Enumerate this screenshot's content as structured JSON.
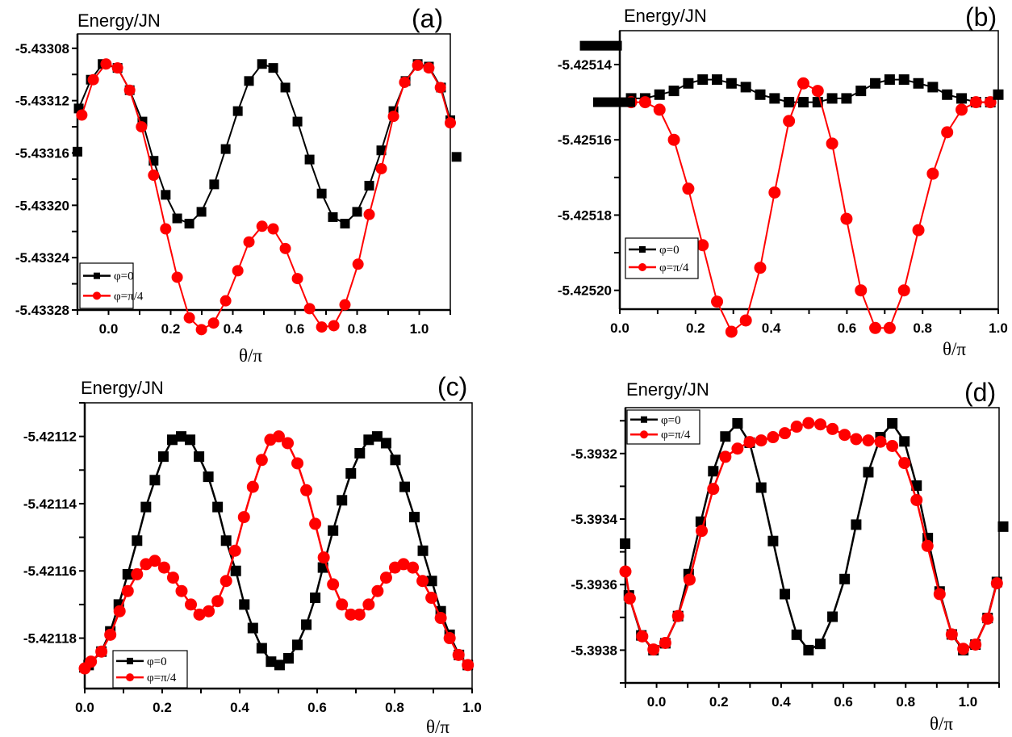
{
  "chart_data": [
    {
      "id": "a",
      "type": "line",
      "panel_label": "(a)",
      "title": "",
      "ylabel": "Energy/JN",
      "xlabel": "θ/π",
      "xlim": [
        -0.1,
        1.1
      ],
      "ylim": [
        -5.43328,
        -5.433069
      ],
      "xticks": [
        0.0,
        0.2,
        0.4,
        0.6,
        0.8,
        1.0
      ],
      "xtick_labels": [
        "0.0",
        "0.2",
        "0.4",
        "0.6",
        "0.8",
        "1.0"
      ],
      "yticks": [
        -5.43308,
        -5.43312,
        -5.43316,
        -5.4332,
        -5.43324,
        -5.43328
      ],
      "ytick_labels": [
        "-5.43308",
        "-5.43312",
        "-5.43316",
        "-5.43320",
        "-5.43324",
        "-5.43328"
      ],
      "legend": {
        "placement": "bottom-left",
        "entries": [
          "φ=0",
          "φ=π/4"
        ]
      },
      "grid": false,
      "series": [
        {
          "name": "φ=0",
          "color": "#000000",
          "marker": "square",
          "x": [
            -0.096,
            -0.057,
            -0.019,
            0.029,
            0.068,
            0.109,
            0.145,
            0.184,
            0.221,
            0.26,
            0.299,
            0.34,
            0.377,
            0.416,
            0.452,
            0.494,
            0.53,
            0.569,
            0.608,
            0.647,
            0.686,
            0.722,
            0.761,
            0.8,
            0.839,
            0.878,
            0.917,
            0.956,
            0.995,
            1.031,
            1.07,
            1.1
          ],
          "y": [
            -5.433126,
            -5.433104,
            -5.433092,
            -5.433095,
            -5.433112,
            -5.433136,
            -5.433166,
            -5.433192,
            -5.43321,
            -5.433214,
            -5.433205,
            -5.433184,
            -5.433157,
            -5.433128,
            -5.433105,
            -5.433092,
            -5.433095,
            -5.43311,
            -5.433136,
            -5.433165,
            -5.433191,
            -5.433209,
            -5.433214,
            -5.433205,
            -5.433185,
            -5.433158,
            -5.433128,
            -5.433105,
            -5.433092,
            -5.433094,
            -5.43311,
            -5.433135
          ]
        },
        {
          "name": "φ=π/4",
          "color": "#ff0000",
          "marker": "circle",
          "x": [
            -0.086,
            -0.049,
            -0.008,
            0.029,
            0.068,
            0.106,
            0.145,
            0.184,
            0.221,
            0.26,
            0.299,
            0.338,
            0.377,
            0.416,
            0.452,
            0.494,
            0.53,
            0.569,
            0.608,
            0.647,
            0.686,
            0.725,
            0.761,
            0.803,
            0.839,
            0.878,
            0.917,
            0.953,
            0.995,
            1.031,
            1.068,
            1.1
          ],
          "y": [
            -5.433131,
            -5.433104,
            -5.433092,
            -5.433095,
            -5.433112,
            -5.43314,
            -5.433177,
            -5.433218,
            -5.433255,
            -5.433286,
            -5.433295,
            -5.43329,
            -5.433273,
            -5.43325,
            -5.433228,
            -5.433216,
            -5.433218,
            -5.433233,
            -5.433256,
            -5.433279,
            -5.433293,
            -5.433292,
            -5.433276,
            -5.433245,
            -5.433207,
            -5.433172,
            -5.433132,
            -5.433106,
            -5.433093,
            -5.433095,
            -5.43311,
            -5.433137
          ]
        }
      ],
      "outliers": [
        {
          "x": -0.1,
          "y": -5.433159,
          "color": "#000000"
        },
        {
          "x": 1.12,
          "y": -5.433163,
          "color": "#000000"
        }
      ]
    },
    {
      "id": "b",
      "type": "line",
      "panel_label": "(b)",
      "title": "",
      "ylabel": "Energy/JN",
      "xlabel": "θ/π",
      "xlim": [
        0.0,
        1.0
      ],
      "ylim": [
        -5.425205,
        -5.425131
      ],
      "xticks": [
        0.0,
        0.2,
        0.4,
        0.6,
        0.8,
        1.0
      ],
      "xtick_labels": [
        "0.0",
        "0.2",
        "0.4",
        "0.6",
        "0.8",
        "1.0"
      ],
      "yticks": [
        -5.42514,
        -5.42516,
        -5.42518,
        -5.4252
      ],
      "ytick_labels": [
        "-5.42514",
        "-5.42516",
        "-5.42518",
        "-5.42520"
      ],
      "legend": {
        "placement": "bottom-left",
        "entries": [
          "φ=0",
          "φ=π/4"
        ]
      },
      "grid": false,
      "series": [
        {
          "name": "φ=0",
          "color": "#000000",
          "marker": "square",
          "x": [
            0.03,
            0.067,
            0.105,
            0.143,
            0.181,
            0.219,
            0.257,
            0.295,
            0.333,
            0.371,
            0.409,
            0.447,
            0.485,
            0.523,
            0.561,
            0.599,
            0.637,
            0.675,
            0.713,
            0.751,
            0.789,
            0.827,
            0.865,
            0.903,
            0.941,
            0.979
          ],
          "y": [
            -5.425149,
            -5.425149,
            -5.425148,
            -5.425147,
            -5.425145,
            -5.425144,
            -5.425144,
            -5.425145,
            -5.425146,
            -5.425148,
            -5.425149,
            -5.42515,
            -5.42515,
            -5.42515,
            -5.425149,
            -5.425149,
            -5.425147,
            -5.425145,
            -5.425144,
            -5.425144,
            -5.425145,
            -5.425146,
            -5.425148,
            -5.425149,
            -5.42515,
            -5.42515
          ]
        },
        {
          "name": "φ=π/4",
          "color": "#ff0000",
          "marker": "circle",
          "x": [
            0.03,
            0.067,
            0.105,
            0.143,
            0.181,
            0.219,
            0.257,
            0.295,
            0.333,
            0.371,
            0.409,
            0.447,
            0.485,
            0.523,
            0.561,
            0.599,
            0.637,
            0.675,
            0.713,
            0.751,
            0.789,
            0.827,
            0.865,
            0.903,
            0.941,
            0.979
          ],
          "y": [
            -5.42515,
            -5.42515,
            -5.425152,
            -5.42516,
            -5.425173,
            -5.425188,
            -5.425203,
            -5.425211,
            -5.425208,
            -5.425194,
            -5.425174,
            -5.425155,
            -5.425145,
            -5.425147,
            -5.425161,
            -5.425181,
            -5.4252,
            -5.42521,
            -5.42521,
            -5.4252,
            -5.425184,
            -5.425169,
            -5.425158,
            -5.425152,
            -5.42515,
            -5.42515
          ]
        }
      ],
      "outliers": [
        {
          "x": -0.05,
          "y": -5.425135,
          "color": "#000000",
          "shape": "bar"
        },
        {
          "x": -0.015,
          "y": -5.42515,
          "color": "#000000",
          "shape": "bar"
        },
        {
          "x": 1.0,
          "y": -5.425148,
          "color": "#000000"
        }
      ]
    },
    {
      "id": "c",
      "type": "line",
      "panel_label": "(c)",
      "title": "",
      "ylabel": "Energy/JN",
      "xlabel": "θ/π",
      "xlim": [
        0.0,
        1.0
      ],
      "ylim": [
        -5.421195,
        -5.42111
      ],
      "xticks": [
        0.0,
        0.2,
        0.4,
        0.6,
        0.8,
        1.0
      ],
      "xtick_labels": [
        "0.0",
        "0.2",
        "0.4",
        "0.6",
        "0.8",
        "1.0"
      ],
      "yticks": [
        -5.42112,
        -5.42114,
        -5.42116,
        -5.42118
      ],
      "ytick_labels": [
        "-5.42112",
        "-5.42114",
        "-5.42116",
        "-5.42118"
      ],
      "legend": {
        "placement": "bottom-left",
        "entries": [
          "φ=0",
          "φ=π/4"
        ]
      },
      "grid": false,
      "series": [
        {
          "name": "φ=0",
          "color": "#000000",
          "marker": "square",
          "x": [
            0.01,
            0.043,
            0.066,
            0.088,
            0.111,
            0.135,
            0.158,
            0.181,
            0.203,
            0.226,
            0.249,
            0.272,
            0.295,
            0.319,
            0.343,
            0.365,
            0.39,
            0.412,
            0.434,
            0.457,
            0.481,
            0.503,
            0.526,
            0.549,
            0.572,
            0.595,
            0.615,
            0.641,
            0.664,
            0.687,
            0.71,
            0.733,
            0.755,
            0.778,
            0.802,
            0.826,
            0.851,
            0.873,
            0.896,
            0.919,
            0.942,
            0.966,
            0.989
          ],
          "y": [
            -5.421188,
            -5.421184,
            -5.421178,
            -5.42117,
            -5.421161,
            -5.421151,
            -5.421141,
            -5.421133,
            -5.421126,
            -5.421121,
            -5.42112,
            -5.421121,
            -5.421126,
            -5.421132,
            -5.421141,
            -5.421151,
            -5.42116,
            -5.42117,
            -5.421177,
            -5.421183,
            -5.421187,
            -5.421188,
            -5.421186,
            -5.421182,
            -5.421176,
            -5.421168,
            -5.421159,
            -5.421148,
            -5.421139,
            -5.421131,
            -5.421125,
            -5.421121,
            -5.42112,
            -5.421122,
            -5.421127,
            -5.421135,
            -5.421144,
            -5.421154,
            -5.421163,
            -5.421172,
            -5.421179,
            -5.421185,
            -5.421188
          ]
        },
        {
          "name": "φ=π/4",
          "color": "#ff0000",
          "marker": "circle",
          "x": [
            0.0,
            0.016,
            0.043,
            0.066,
            0.09,
            0.111,
            0.135,
            0.158,
            0.181,
            0.205,
            0.228,
            0.25,
            0.274,
            0.296,
            0.32,
            0.343,
            0.365,
            0.388,
            0.411,
            0.434,
            0.457,
            0.479,
            0.501,
            0.524,
            0.549,
            0.572,
            0.595,
            0.617,
            0.641,
            0.664,
            0.687,
            0.709,
            0.733,
            0.756,
            0.778,
            0.801,
            0.823,
            0.847,
            0.872,
            0.895,
            0.919,
            0.942,
            0.965,
            0.989
          ],
          "y": [
            -5.421189,
            -5.421187,
            -5.421184,
            -5.421179,
            -5.421172,
            -5.421166,
            -5.421161,
            -5.421158,
            -5.421157,
            -5.421159,
            -5.421162,
            -5.421166,
            -5.42117,
            -5.421173,
            -5.421172,
            -5.421169,
            -5.421163,
            -5.421154,
            -5.421144,
            -5.421135,
            -5.421127,
            -5.421121,
            -5.42112,
            -5.421122,
            -5.421128,
            -5.421136,
            -5.421146,
            -5.421156,
            -5.421164,
            -5.42117,
            -5.421173,
            -5.421173,
            -5.42117,
            -5.421166,
            -5.421162,
            -5.421159,
            -5.421158,
            -5.421159,
            -5.421163,
            -5.421168,
            -5.421174,
            -5.42118,
            -5.421185,
            -5.421188
          ]
        }
      ],
      "outliers": []
    },
    {
      "id": "d",
      "type": "line",
      "panel_label": "(d)",
      "title": "",
      "ylabel": "Energy/JN",
      "xlabel": "θ/π",
      "xlim": [
        -0.1,
        1.1
      ],
      "ylim": [
        -5.3939,
        -5.39306
      ],
      "xticks": [
        0.0,
        0.2,
        0.4,
        0.6,
        0.8,
        1.0
      ],
      "xtick_labels": [
        "0.0",
        "0.2",
        "0.4",
        "0.6",
        "0.8",
        "1.0"
      ],
      "yticks": [
        -5.3932,
        -5.3934,
        -5.3936,
        -5.3938
      ],
      "ytick_labels": [
        "-5.3932",
        "-5.3934",
        "-5.3936",
        "-5.3938"
      ],
      "legend": {
        "placement": "top-left",
        "entries": [
          "φ=0",
          "φ=π/4"
        ]
      },
      "grid": false,
      "series": [
        {
          "name": "φ=0",
          "color": "#000000",
          "marker": "square",
          "x": [
            -0.089,
            -0.049,
            -0.01,
            0.028,
            0.069,
            0.103,
            0.142,
            0.182,
            0.221,
            0.26,
            0.299,
            0.336,
            0.374,
            0.412,
            0.45,
            0.488,
            0.526,
            0.565,
            0.604,
            0.641,
            0.68,
            0.719,
            0.757,
            0.796,
            0.835,
            0.871,
            0.909,
            0.948,
            0.985,
            1.024,
            1.063,
            1.093
          ],
          "y": [
            -5.393633,
            -5.393755,
            -5.3938,
            -5.393779,
            -5.393696,
            -5.393568,
            -5.393408,
            -5.393254,
            -5.393148,
            -5.393108,
            -5.393167,
            -5.393304,
            -5.393467,
            -5.393629,
            -5.393753,
            -5.3938,
            -5.393781,
            -5.393698,
            -5.393583,
            -5.393417,
            -5.393257,
            -5.39315,
            -5.393108,
            -5.393163,
            -5.393298,
            -5.393458,
            -5.393621,
            -5.393752,
            -5.3938,
            -5.393783,
            -5.393702,
            -5.393592
          ]
        },
        {
          "name": "φ=π/4",
          "color": "#ff0000",
          "marker": "circle",
          "x": [
            -0.1,
            -0.086,
            -0.046,
            -0.01,
            0.028,
            0.069,
            0.106,
            0.145,
            0.182,
            0.221,
            0.26,
            0.299,
            0.336,
            0.374,
            0.412,
            0.45,
            0.488,
            0.526,
            0.565,
            0.604,
            0.641,
            0.68,
            0.719,
            0.757,
            0.796,
            0.835,
            0.87,
            0.909,
            0.948,
            0.985,
            1.024,
            1.063,
            1.093
          ],
          "y": [
            -5.39356,
            -5.393642,
            -5.393758,
            -5.393798,
            -5.393778,
            -5.393696,
            -5.393585,
            -5.393436,
            -5.393308,
            -5.39321,
            -5.393185,
            -5.393165,
            -5.39316,
            -5.39315,
            -5.393138,
            -5.393118,
            -5.393107,
            -5.393111,
            -5.393125,
            -5.393143,
            -5.393156,
            -5.39316,
            -5.393164,
            -5.393177,
            -5.393229,
            -5.393342,
            -5.393482,
            -5.393629,
            -5.393752,
            -5.393796,
            -5.393783,
            -5.393704,
            -5.393596
          ]
        }
      ],
      "outliers": [
        {
          "x": -0.101,
          "y": -5.393475,
          "color": "#000000"
        },
        {
          "x": 1.113,
          "y": -5.393423,
          "color": "#000000"
        }
      ]
    }
  ]
}
